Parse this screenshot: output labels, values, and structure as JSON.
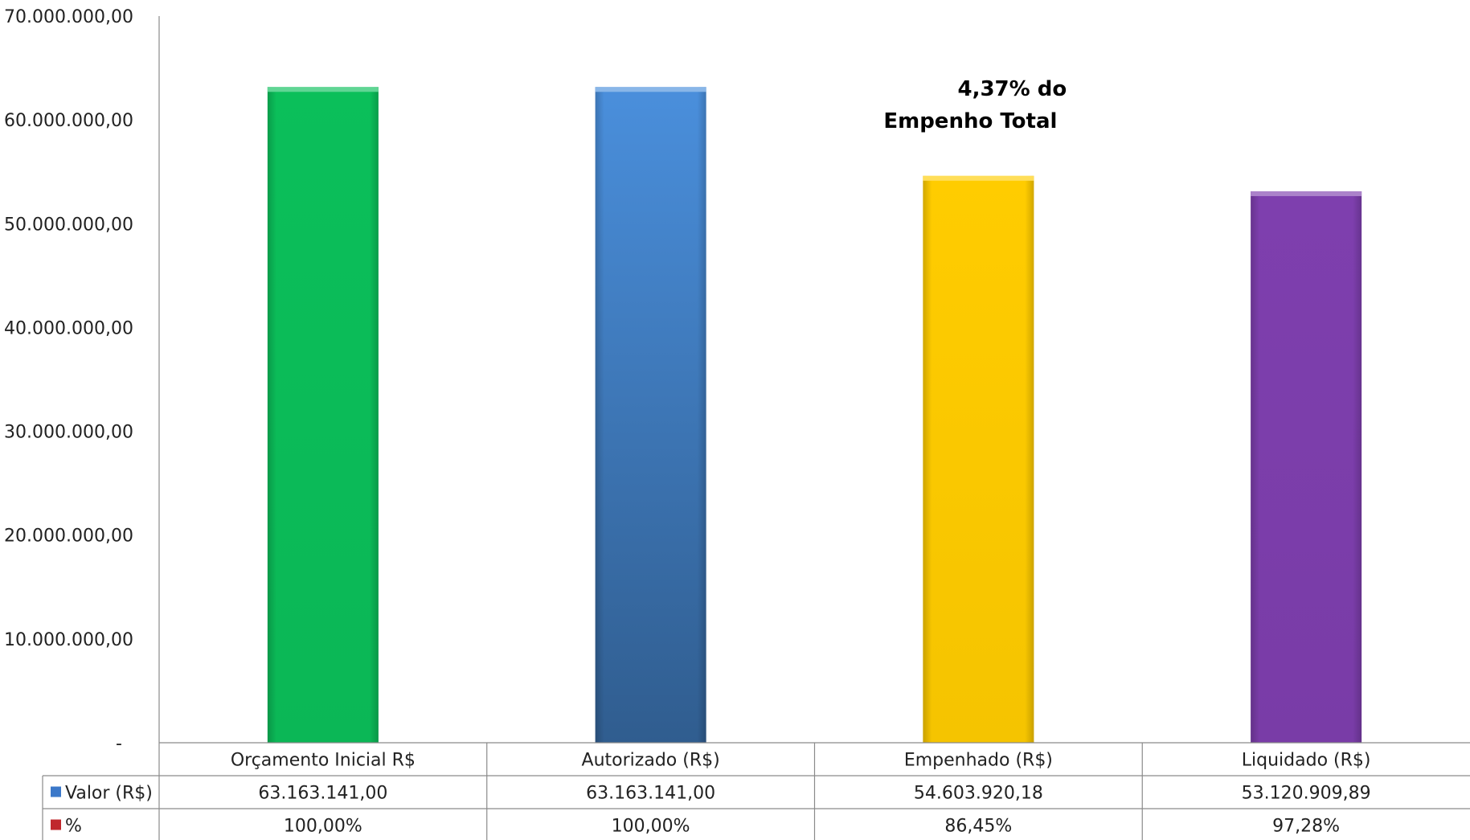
{
  "chart_data": {
    "type": "bar",
    "categories": [
      "Orçamento Inicial R$",
      "Autorizado (R$)",
      "Empenhado (R$)",
      "Liquidado (R$)"
    ],
    "values": [
      63163141.0,
      63163141.0,
      54603920.18,
      53120909.89
    ],
    "bar_colors": [
      "#0bbf5a",
      "#4a8fdc",
      "#ffcc00",
      "#7e3fae"
    ],
    "ylim": [
      0,
      70000000
    ],
    "y_ticks": [
      {
        "value": 0,
        "label": "-"
      },
      {
        "value": 10000000,
        "label": "10.000.000,00"
      },
      {
        "value": 20000000,
        "label": "20.000.000,00"
      },
      {
        "value": 30000000,
        "label": "30.000.000,00"
      },
      {
        "value": 40000000,
        "label": "40.000.000,00"
      },
      {
        "value": 50000000,
        "label": "50.000.000,00"
      },
      {
        "value": 60000000,
        "label": "60.000.000,00"
      },
      {
        "value": 70000000,
        "label": "70.000.000,00"
      }
    ],
    "annotation": [
      "4,37% do",
      "Empenho Total"
    ],
    "data_table": {
      "rows": [
        {
          "label": "Valor (R$)",
          "marker_color": "#3b78c9",
          "cells": [
            "63.163.141,00",
            "63.163.141,00",
            "54.603.920,18",
            "53.120.909,89"
          ]
        },
        {
          "label": "%",
          "marker_color": "#c0282d",
          "cells": [
            "100,00%",
            "100,00%",
            "86,45%",
            "97,28%"
          ]
        }
      ]
    },
    "grid": false,
    "legend": "data-table"
  }
}
